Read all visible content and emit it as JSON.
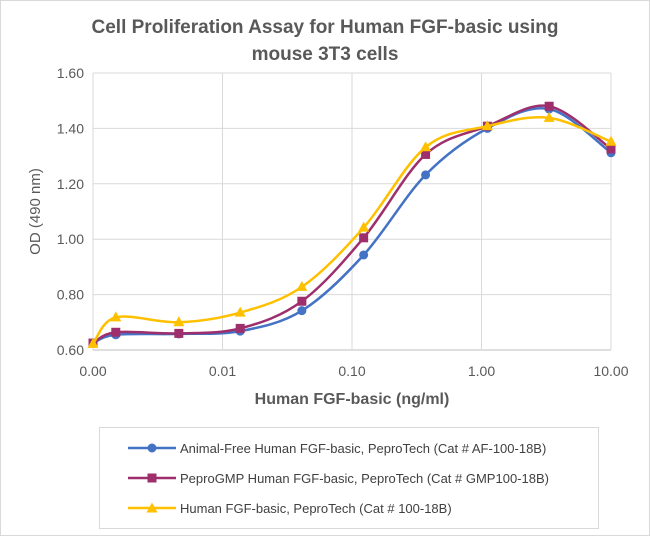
{
  "chart_data": {
    "type": "line",
    "title_line1": "Cell Proliferation Assay for Human FGF-basic using",
    "title_line2": "mouse 3T3 cells",
    "xlabel": "Human FGF-basic (ng/ml)",
    "ylabel": "OD (490 nm)",
    "x_scale": "log",
    "x_ticks": [
      "0.00",
      "0.01",
      "0.10",
      "1.00",
      "10.00"
    ],
    "y_ticks": [
      "0.60",
      "0.80",
      "1.00",
      "1.20",
      "1.40",
      "1.60"
    ],
    "ylim": [
      0.6,
      1.6
    ],
    "legend_position": "bottom",
    "series": [
      {
        "name": "Animal-Free Human FGF-basic, PeproTech (Cat # AF-100-18B)",
        "color": "#4472c4",
        "marker": "circle",
        "x": [
          0.001,
          0.0015,
          0.0046,
          0.0137,
          0.041,
          0.123,
          0.37,
          1.11,
          3.33,
          10.0
        ],
        "values": [
          0.625,
          0.655,
          0.658,
          0.668,
          0.742,
          0.943,
          1.232,
          1.4,
          1.47,
          1.312
        ]
      },
      {
        "name": "PeproGMP Human FGF-basic, PeproTech (Cat # GMP100-18B)",
        "color": "#9e2f6c",
        "marker": "square",
        "x": [
          0.001,
          0.0015,
          0.0046,
          0.0137,
          0.041,
          0.123,
          0.37,
          1.11,
          3.33,
          10.0
        ],
        "values": [
          0.625,
          0.664,
          0.66,
          0.678,
          0.776,
          1.005,
          1.306,
          1.408,
          1.48,
          1.326
        ]
      },
      {
        "name": "Human FGF-basic, PeproTech (Cat # 100-18B)",
        "color": "#ffc000",
        "marker": "triangle",
        "x": [
          0.001,
          0.0015,
          0.0046,
          0.0137,
          0.041,
          0.123,
          0.37,
          1.11,
          3.33,
          10.0
        ],
        "values": [
          0.622,
          0.718,
          0.7,
          0.735,
          0.828,
          1.042,
          1.332,
          1.408,
          1.438,
          1.352
        ]
      }
    ]
  }
}
